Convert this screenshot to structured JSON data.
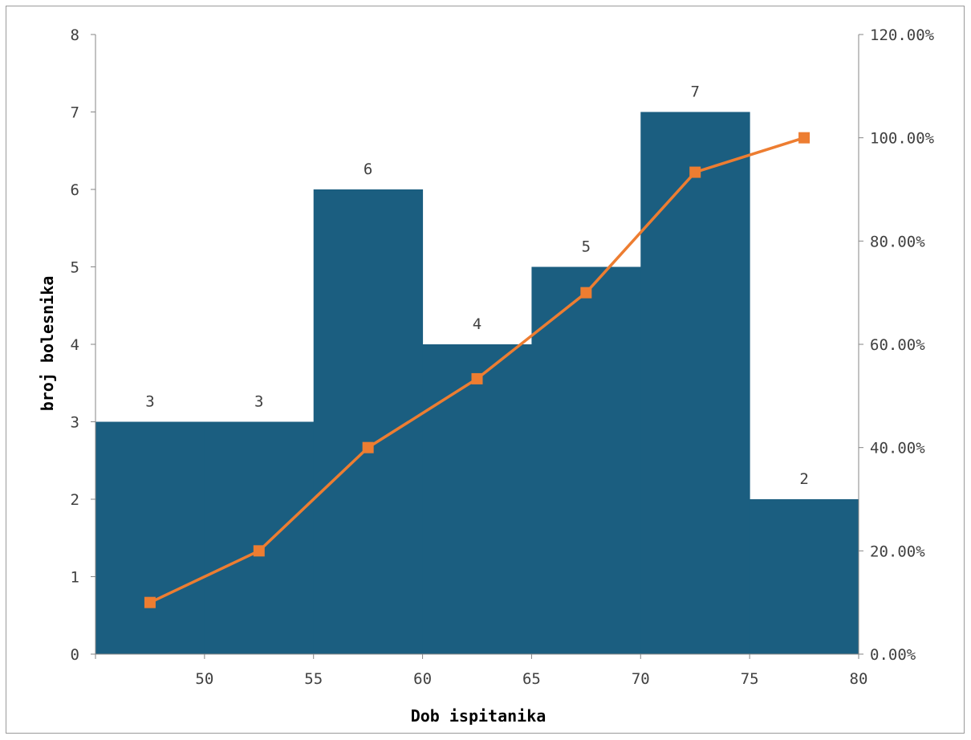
{
  "chart_data": {
    "type": "bar",
    "xlabel": "Dob ispitanika",
    "ylabel": "broj bolesnika",
    "bins": [
      {
        "from": 45,
        "to": 50,
        "count": 3
      },
      {
        "from": 50,
        "to": 55,
        "count": 3
      },
      {
        "from": 55,
        "to": 60,
        "count": 6
      },
      {
        "from": 60,
        "to": 65,
        "count": 4
      },
      {
        "from": 65,
        "to": 70,
        "count": 5
      },
      {
        "from": 70,
        "to": 75,
        "count": 7
      },
      {
        "from": 75,
        "to": 80,
        "count": 2
      }
    ],
    "data_labels": [
      "3",
      "3",
      "6",
      "4",
      "5",
      "7",
      "2"
    ],
    "cumulative": {
      "x": [
        47.5,
        52.5,
        57.5,
        62.5,
        67.5,
        72.5,
        77.5
      ],
      "y": [
        10,
        20,
        40,
        53.33,
        70,
        93.33,
        100
      ]
    },
    "x_ticks": [
      "50",
      "55",
      "60",
      "65",
      "70",
      "75",
      "80"
    ],
    "x_tick_values": [
      50,
      55,
      60,
      65,
      70,
      75,
      80
    ],
    "xlim": [
      45,
      80
    ],
    "y_ticks": [
      "0",
      "1",
      "2",
      "3",
      "4",
      "5",
      "6",
      "7",
      "8"
    ],
    "ylim": [
      0,
      8
    ],
    "y2_ticks": [
      "0.00%",
      "20.00%",
      "40.00%",
      "60.00%",
      "80.00%",
      "100.00%",
      "120.00%"
    ],
    "y2lim": [
      0,
      120
    ],
    "colors": {
      "bars": "#1b5e80",
      "line": "#ed7d31",
      "axis": "#868686"
    },
    "grid": false,
    "legend": "none"
  }
}
